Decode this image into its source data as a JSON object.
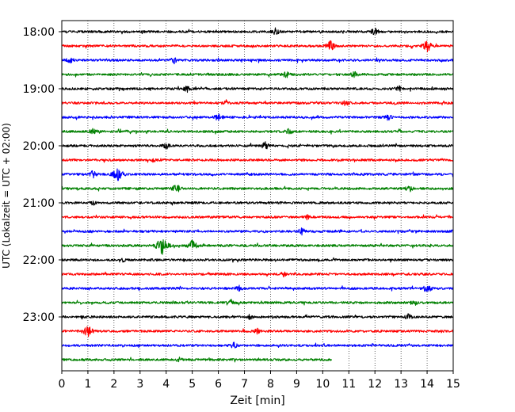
{
  "chart_data": {
    "type": "line",
    "title": "",
    "xlabel": "Zeit  [min]",
    "ylabel": "UTC (Lokalzeit = UTC + 02:00)",
    "xlim": [
      0,
      15
    ],
    "x_ticks": [
      "0",
      "1",
      "2",
      "3",
      "4",
      "5",
      "6",
      "7",
      "8",
      "9",
      "10",
      "11",
      "12",
      "13",
      "14",
      "15"
    ],
    "y_ticks": [
      "18:00",
      "19:00",
      "20:00",
      "21:00",
      "22:00",
      "23:00"
    ],
    "grid": "vertical dotted lines at each minute",
    "trace_interval_min": 15,
    "trace_length_min": 15,
    "color_cycle": [
      "#000000",
      "#ff0000",
      "#0000ff",
      "#008000"
    ],
    "traces": [
      {
        "start": "18:00",
        "color": "#000000",
        "end_min": 15,
        "events": [
          {
            "t": 8.2,
            "amp": 6
          },
          {
            "t": 12.0,
            "amp": 6
          }
        ]
      },
      {
        "start": "18:15",
        "color": "#ff0000",
        "end_min": 15,
        "events": [
          {
            "t": 10.3,
            "amp": 8
          },
          {
            "t": 14.0,
            "amp": 9
          }
        ]
      },
      {
        "start": "18:30",
        "color": "#0000ff",
        "end_min": 15,
        "events": [
          {
            "t": 0.3,
            "amp": 6
          },
          {
            "t": 4.3,
            "amp": 5
          }
        ]
      },
      {
        "start": "18:45",
        "color": "#008000",
        "end_min": 15,
        "events": [
          {
            "t": 8.6,
            "amp": 5
          },
          {
            "t": 11.2,
            "amp": 5
          }
        ]
      },
      {
        "start": "19:00",
        "color": "#000000",
        "end_min": 15,
        "events": [
          {
            "t": 4.8,
            "amp": 5
          },
          {
            "t": 12.9,
            "amp": 5
          }
        ]
      },
      {
        "start": "19:15",
        "color": "#ff0000",
        "end_min": 15,
        "events": [
          {
            "t": 6.3,
            "amp": 5
          },
          {
            "t": 10.9,
            "amp": 5
          }
        ]
      },
      {
        "start": "19:30",
        "color": "#0000ff",
        "end_min": 15,
        "events": [
          {
            "t": 6.0,
            "amp": 6
          },
          {
            "t": 12.5,
            "amp": 5
          }
        ]
      },
      {
        "start": "19:45",
        "color": "#008000",
        "end_min": 15,
        "events": [
          {
            "t": 1.2,
            "amp": 5
          },
          {
            "t": 8.7,
            "amp": 5
          }
        ]
      },
      {
        "start": "20:00",
        "color": "#000000",
        "end_min": 15,
        "events": [
          {
            "t": 7.8,
            "amp": 6
          },
          {
            "t": 4.0,
            "amp": 5
          }
        ]
      },
      {
        "start": "20:15",
        "color": "#ff0000",
        "end_min": 15,
        "events": [
          {
            "t": 3.5,
            "amp": 4
          }
        ]
      },
      {
        "start": "20:30",
        "color": "#0000ff",
        "end_min": 15,
        "events": [
          {
            "t": 2.15,
            "amp": 12
          },
          {
            "t": 1.2,
            "amp": 6
          }
        ]
      },
      {
        "start": "20:45",
        "color": "#008000",
        "end_min": 15,
        "events": [
          {
            "t": 4.4,
            "amp": 7
          },
          {
            "t": 13.3,
            "amp": 6
          }
        ]
      },
      {
        "start": "21:00",
        "color": "#000000",
        "end_min": 15,
        "events": [
          {
            "t": 1.2,
            "amp": 4
          }
        ]
      },
      {
        "start": "21:15",
        "color": "#ff0000",
        "end_min": 15,
        "events": [
          {
            "t": 9.4,
            "amp": 4
          }
        ]
      },
      {
        "start": "21:30",
        "color": "#0000ff",
        "end_min": 15,
        "events": [
          {
            "t": 9.2,
            "amp": 5
          }
        ]
      },
      {
        "start": "21:45",
        "color": "#008000",
        "end_min": 15,
        "events": [
          {
            "t": 3.85,
            "amp": 15
          },
          {
            "t": 5.0,
            "amp": 8
          }
        ]
      },
      {
        "start": "22:00",
        "color": "#000000",
        "end_min": 15,
        "events": [
          {
            "t": 2.3,
            "amp": 4
          }
        ]
      },
      {
        "start": "22:15",
        "color": "#ff0000",
        "end_min": 15,
        "events": [
          {
            "t": 8.5,
            "amp": 4
          }
        ]
      },
      {
        "start": "22:30",
        "color": "#0000ff",
        "end_min": 15,
        "events": [
          {
            "t": 14.0,
            "amp": 7
          },
          {
            "t": 6.8,
            "amp": 5
          }
        ]
      },
      {
        "start": "22:45",
        "color": "#008000",
        "end_min": 15,
        "events": [
          {
            "t": 6.5,
            "amp": 5
          },
          {
            "t": 13.5,
            "amp": 5
          }
        ]
      },
      {
        "start": "23:00",
        "color": "#000000",
        "end_min": 15,
        "events": [
          {
            "t": 7.2,
            "amp": 4
          },
          {
            "t": 13.3,
            "amp": 5
          }
        ]
      },
      {
        "start": "23:15",
        "color": "#ff0000",
        "end_min": 15,
        "events": [
          {
            "t": 1.0,
            "amp": 9
          },
          {
            "t": 7.5,
            "amp": 5
          }
        ]
      },
      {
        "start": "23:30",
        "color": "#0000ff",
        "end_min": 15,
        "events": [
          {
            "t": 6.6,
            "amp": 5
          }
        ]
      },
      {
        "start": "23:45",
        "color": "#008000",
        "end_min": 10.35,
        "events": [
          {
            "t": 4.5,
            "amp": 4
          }
        ]
      }
    ]
  }
}
